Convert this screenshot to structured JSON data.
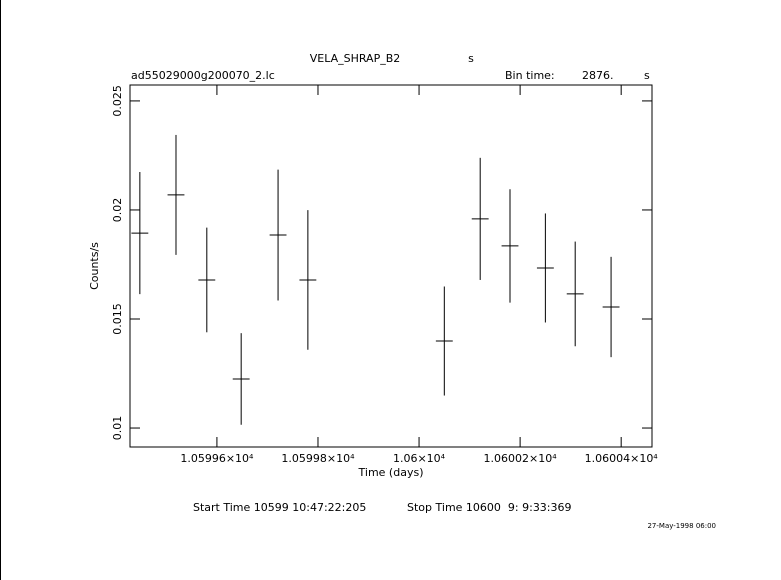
{
  "chart_data": {
    "type": "errorbar",
    "title": "VELA_SHRAP_B2",
    "title_unit": "s",
    "file_name": "ad55029000g200070_2.lc",
    "bin_time_label": "Bin time:",
    "bin_time": "2876.",
    "bin_time_unit": "s",
    "x_label": "Time (days)",
    "y_label": "Counts/s",
    "start_time": "Start Time 10599 10:47:22:205",
    "stop_time": "Stop Time 10600  9: 9:33:369",
    "date_stamp": "27-May-1998 06:00",
    "color": "#000000",
    "x": [
      10599.4475,
      10599.519,
      10599.58,
      10599.648,
      10599.721,
      10599.78,
      10600.05,
      10600.121,
      10600.18,
      10600.25,
      10600.309,
      10600.38
    ],
    "xerr": [
      0.0167,
      0.0167,
      0.0167,
      0.0167,
      0.0167,
      0.0167,
      0.0167,
      0.0167,
      0.0167,
      0.0167,
      0.0167,
      0.0167
    ],
    "values": [
      0.01894,
      0.02069,
      0.01679,
      0.01225,
      0.01885,
      0.01679,
      0.01399,
      0.01959,
      0.01835,
      0.01734,
      0.01615,
      0.01555
    ],
    "errors": [
      0.0028,
      0.00275,
      0.0024,
      0.0021,
      0.003,
      0.0032,
      0.0025,
      0.0028,
      0.0026,
      0.0025,
      0.0024,
      0.0023
    ],
    "xlim": [
      10599.428,
      10600.461
    ],
    "xticks": [
      {
        "value": 10599.6,
        "label": "1.05996×10⁴"
      },
      {
        "value": 10599.8,
        "label": "1.05998×10⁴"
      },
      {
        "value": 10600,
        "label": "1.06×10⁴"
      },
      {
        "value": 10600.2,
        "label": "1.06002×10⁴"
      },
      {
        "value": 10600.4,
        "label": "1.06004×10⁴"
      }
    ],
    "ylim": [
      0.00913,
      0.02573
    ],
    "yticks": [
      0.01,
      0.015,
      0.02,
      0.025
    ]
  }
}
